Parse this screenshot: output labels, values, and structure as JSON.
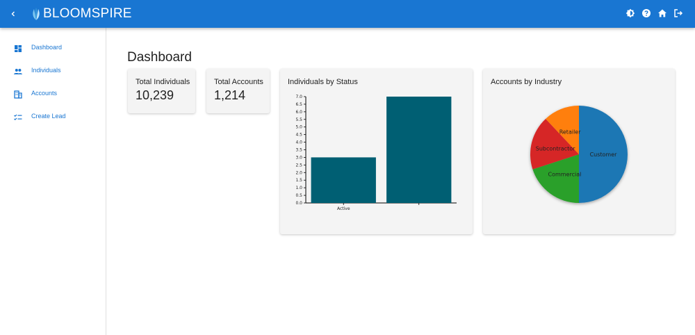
{
  "app": {
    "name": "BLOOMSPIRE"
  },
  "header": {
    "icons": [
      "theme-icon",
      "help-icon",
      "home-icon",
      "logout-icon"
    ]
  },
  "sidebar": {
    "items": [
      {
        "label": "Dashboard",
        "icon": "dashboard-icon"
      },
      {
        "label": "Individuals",
        "icon": "people-icon"
      },
      {
        "label": "Accounts",
        "icon": "building-icon"
      },
      {
        "label": "Create Lead",
        "icon": "checklist-icon"
      }
    ]
  },
  "main": {
    "title": "Dashboard",
    "stats": [
      {
        "title": "Total Individuals",
        "value": "10,239"
      },
      {
        "title": "Total Accounts",
        "value": "1,214"
      }
    ]
  },
  "colors": {
    "primary": "#1976d2",
    "bar": "#005f73",
    "customer": "#1f77b4",
    "commercial": "#2ca02c",
    "subcontractor": "#d62728",
    "retailer": "#ff7f0e"
  },
  "chart_data": [
    {
      "type": "bar",
      "title": "Individuals by Status",
      "categories": [
        "Active",
        ""
      ],
      "values": [
        3,
        7
      ],
      "ylim": [
        0,
        7
      ],
      "yticks": [
        "0.0",
        "0.5",
        "1.0",
        "1.5",
        "2.0",
        "2.5",
        "3.0",
        "3.5",
        "4.0",
        "4.5",
        "5.0",
        "5.5",
        "6.0",
        "6.5",
        "7.0"
      ],
      "grid": false
    },
    {
      "type": "pie",
      "title": "Accounts by Industry",
      "labels": [
        "Customer",
        "Commercial",
        "Subcontractor",
        "Retailer"
      ],
      "values": [
        50,
        20,
        18,
        12
      ]
    }
  ]
}
